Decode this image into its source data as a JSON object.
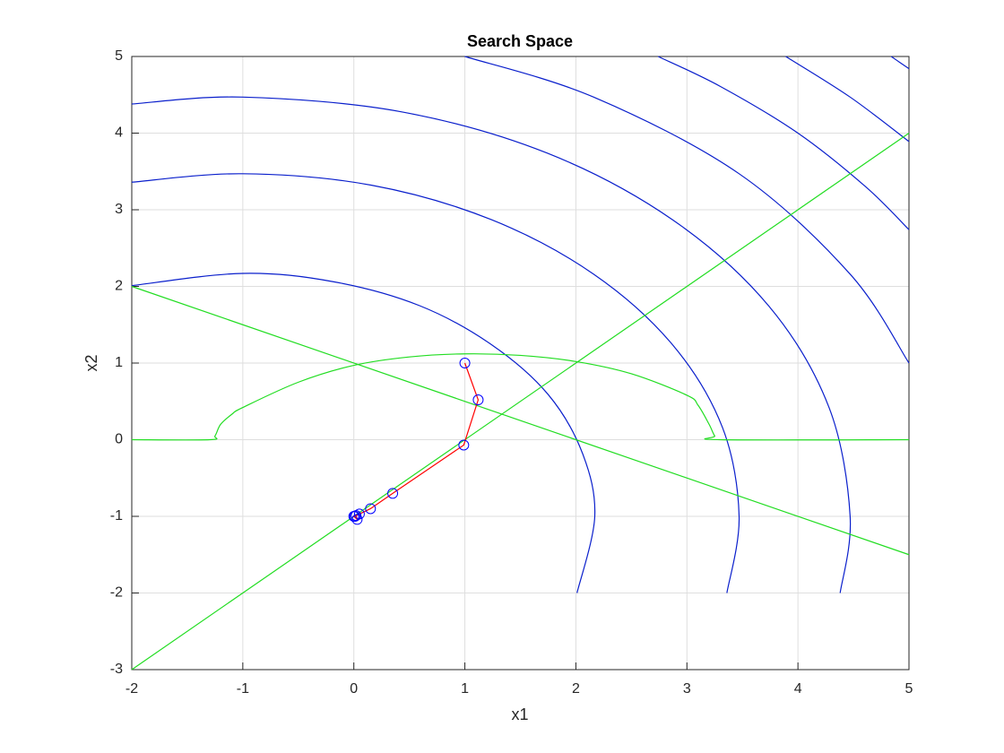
{
  "chart_data": {
    "type": "line",
    "title": "Search Space",
    "xlabel": "x1",
    "ylabel": "x2",
    "xlim": [
      -2,
      5
    ],
    "ylim": [
      -3,
      5
    ],
    "xticks": [
      -2,
      -1,
      0,
      1,
      2,
      3,
      4,
      5
    ],
    "yticks": [
      -3,
      -2,
      -1,
      0,
      1,
      2,
      3,
      4,
      5
    ],
    "grid": true,
    "series": [
      {
        "color": "#0a1fcc",
        "smooth": true,
        "x": [
          -2,
          -1,
          -0.18,
          0.59,
          1.24,
          1.75,
          2.06,
          2.17,
          2.01
        ],
        "values": [
          2.01,
          2.17,
          2.06,
          1.75,
          1.24,
          0.59,
          -0.18,
          -1,
          -2
        ]
      },
      {
        "color": "#0a1fcc",
        "smooth": true,
        "x": [
          -2,
          -1,
          0.16,
          1.24,
          2.16,
          2.87,
          3.32,
          3.47,
          3.36
        ],
        "values": [
          3.36,
          3.47,
          3.32,
          2.87,
          2.16,
          1.24,
          0.16,
          -1,
          -2
        ]
      },
      {
        "color": "#0a1fcc",
        "smooth": true,
        "x": [
          -2,
          -1,
          0.42,
          1.74,
          2.87,
          3.74,
          4.28,
          4.47,
          4.38
        ],
        "values": [
          4.38,
          4.47,
          4.28,
          3.74,
          2.87,
          1.74,
          0.42,
          -1,
          -2
        ]
      },
      {
        "color": "#0a1fcc",
        "smooth": true,
        "x": [
          1,
          2.16,
          3.47,
          4.47,
          5
        ],
        "values": [
          5,
          4.47,
          3.47,
          2.16,
          1
        ]
      },
      {
        "color": "#0a1fcc",
        "smooth": true,
        "x": [
          2.74,
          3.3,
          4,
          4.61,
          5
        ],
        "values": [
          5,
          4.61,
          4,
          3.3,
          2.74
        ]
      },
      {
        "color": "#0a1fcc",
        "smooth": true,
        "x": [
          3.89,
          4.47,
          5
        ],
        "values": [
          5,
          4.47,
          3.89
        ]
      },
      {
        "color": "#0a1fcc",
        "smooth": true,
        "x": [
          4.84,
          4.92,
          5
        ],
        "values": [
          5,
          4.92,
          4.84
        ]
      },
      {
        "color": "#22dd22",
        "smooth": false,
        "x": [
          -2,
          5
        ],
        "values": [
          -3,
          4
        ]
      },
      {
        "color": "#22dd22",
        "smooth": false,
        "x": [
          -2,
          5
        ],
        "values": [
          2,
          -1.5
        ]
      },
      {
        "color": "#22dd22",
        "smooth": true,
        "x": [
          -2,
          -1.3,
          -1.25,
          -1.2,
          -1.1,
          -1,
          -0.5,
          0,
          0.5,
          1,
          1.5,
          2,
          2.5,
          3,
          3.1,
          3.2,
          3.25,
          3.3,
          5
        ],
        "values": [
          0,
          0,
          0.05,
          0.2,
          0.33,
          0.42,
          0.75,
          0.97,
          1.08,
          1.12,
          1.1,
          1.02,
          0.86,
          0.58,
          0.45,
          0.2,
          0.05,
          0,
          0
        ]
      },
      {
        "color": "#ff0000",
        "smooth": false,
        "marker": "circle",
        "marker_color": "#0000ff",
        "x": [
          1,
          1.12,
          0.99,
          0.35,
          0.15,
          0.05,
          0.02,
          0.03,
          0,
          0.01
        ],
        "values": [
          1,
          0.52,
          -0.07,
          -0.7,
          -0.9,
          -0.97,
          -0.99,
          -1.04,
          -1,
          -1
        ]
      }
    ]
  }
}
